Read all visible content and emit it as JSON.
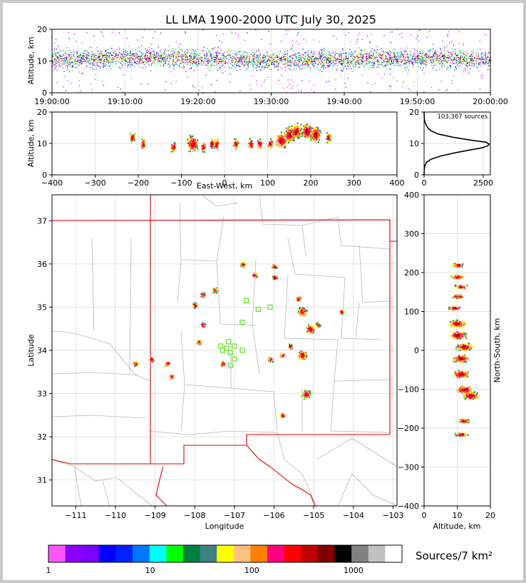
{
  "title": "LL LMA 1900-2000 UTC July 30, 2025",
  "time_height": {
    "ylabel": "Altitude, km",
    "y_ticks": [
      "0",
      "10",
      "20"
    ],
    "x_ticks": [
      "19:00:00",
      "19:10:00",
      "19:20:00",
      "19:30:00",
      "19:40:00",
      "19:50:00",
      "20:00:00"
    ]
  },
  "ew_panel": {
    "ylabel": "Altitude, km",
    "xlabel": "East-West, km",
    "x_ticks": [
      "−400",
      "−300",
      "−200",
      "−100",
      "0",
      "100",
      "200",
      "300",
      "400"
    ],
    "y_ticks": [
      "0",
      "10",
      "20"
    ]
  },
  "hist_panel": {
    "annotation": "103,367 sources",
    "x_ticks": [
      "0",
      "2500"
    ],
    "y_ticks": [
      "0",
      "10",
      "20"
    ]
  },
  "map_panel": {
    "xlabel": "Longitude",
    "ylabel": "Latitude",
    "x_ticks": [
      "−111",
      "−110",
      "−109",
      "−108",
      "−107",
      "−106",
      "−105",
      "−104",
      "−103"
    ],
    "y_ticks": [
      "31",
      "32",
      "33",
      "34",
      "35",
      "36",
      "37"
    ]
  },
  "ns_panel": {
    "xlabel": "Altitude, km",
    "ylabel": "North-South, km",
    "x_ticks": [
      "0",
      "10",
      "20"
    ],
    "y_ticks": [
      "−400",
      "−300",
      "−200",
      "−100",
      "0",
      "100",
      "200",
      "300",
      "400"
    ]
  },
  "colorbar": {
    "label": "Sources/7 km²",
    "ticks": [
      "1",
      "10",
      "100",
      "1000"
    ],
    "colors": [
      "#ff55ff",
      "#8a00ff",
      "#7a00ff",
      "#0000ff",
      "#0022ff",
      "#0077ff",
      "#00ffff",
      "#00ff00",
      "#008040",
      "#408080",
      "#ffff00",
      "#ffc080",
      "#ff8000",
      "#ff0080",
      "#ff0000",
      "#c00000",
      "#800000",
      "#000000",
      "#808080",
      "#c0c0c0",
      "#ffffff"
    ]
  },
  "chart_data": [
    {
      "type": "scatter",
      "title": "LL LMA 1900-2000 UTC July 30, 2025",
      "xlabel": "",
      "ylabel": "Altitude, km",
      "xlim": [
        "19:00:00",
        "20:00:00"
      ],
      "ylim": [
        0,
        20
      ],
      "series": [
        {
          "values": [
            [
              0,
              10.5
            ],
            [
              10,
              11
            ],
            [
              20,
              10.8
            ],
            [
              30,
              10.2
            ],
            [
              40,
              10.6
            ],
            [
              50,
              11
            ],
            [
              60,
              10.5
            ]
          ]
        }
      ],
      "grid": true
    },
    {
      "type": "heatmap",
      "xlabel": "East-West, km",
      "ylabel": "Altitude, km",
      "xlim": [
        -400,
        400
      ],
      "ylim": [
        0,
        20
      ],
      "cells": [
        [
          -215,
          12
        ],
        [
          -190,
          10
        ],
        [
          -120,
          9
        ],
        [
          -75,
          10
        ],
        [
          -50,
          9
        ],
        [
          -30,
          10
        ],
        [
          -20,
          10
        ],
        [
          25,
          10
        ],
        [
          60,
          10
        ],
        [
          80,
          10
        ],
        [
          105,
          10
        ],
        [
          130,
          11
        ],
        [
          150,
          13
        ],
        [
          165,
          14
        ],
        [
          190,
          14
        ],
        [
          210,
          13
        ],
        [
          240,
          12
        ]
      ]
    },
    {
      "type": "line",
      "xlabel": "",
      "ylabel": "",
      "xlim": [
        0,
        2800
      ],
      "ylim": [
        0,
        20
      ],
      "x": [
        0,
        10,
        40,
        100,
        300,
        700,
        1300,
        2000,
        2450,
        2700,
        2750,
        2600,
        2000,
        1200,
        600,
        300,
        150,
        80,
        30,
        10,
        0
      ],
      "y": [
        0,
        2,
        3,
        4,
        5,
        6,
        7,
        8,
        8.6,
        9.3,
        9.8,
        10.4,
        11,
        12,
        13,
        14,
        15,
        16,
        17,
        18,
        20
      ]
    },
    {
      "type": "heatmap",
      "xlabel": "Longitude",
      "ylabel": "Latitude",
      "xlim": [
        -111.6,
        -102.9
      ],
      "ylim": [
        30.4,
        37.6
      ],
      "cells": [
        [
          -105.1,
          34.5
        ],
        [
          -105.3,
          33.9
        ],
        [
          -105.2,
          33.0
        ],
        [
          -105.3,
          34.9
        ],
        [
          -105.6,
          34.1
        ],
        [
          -105.8,
          33.9
        ],
        [
          -106.0,
          35.7
        ],
        [
          -106.0,
          35.95
        ],
        [
          -106.1,
          33.8
        ],
        [
          -105.8,
          32.5
        ],
        [
          -107.8,
          34.6
        ],
        [
          -107.9,
          34.2
        ],
        [
          -107.8,
          35.3
        ],
        [
          -108.0,
          35.05
        ],
        [
          -106.8,
          36.0
        ],
        [
          -104.9,
          34.6
        ],
        [
          -109.5,
          33.7
        ],
        [
          -107.3,
          33.7
        ],
        [
          -104.3,
          34.9
        ],
        [
          -105.4,
          35.2
        ],
        [
          -108.7,
          33.7
        ],
        [
          -108.6,
          33.4
        ],
        [
          -107.5,
          35.4
        ],
        [
          -106.5,
          35.75
        ],
        [
          -109.1,
          33.8
        ]
      ]
    },
    {
      "type": "heatmap",
      "xlabel": "Altitude, km",
      "ylabel": "North-South, km",
      "xlim": [
        0,
        20
      ],
      "ylim": [
        -400,
        400
      ],
      "cells": [
        [
          10,
          220
        ],
        [
          10,
          190
        ],
        [
          11,
          165
        ],
        [
          10,
          140
        ],
        [
          9,
          110
        ],
        [
          10,
          70
        ],
        [
          10,
          40
        ],
        [
          12,
          10
        ],
        [
          11,
          -20
        ],
        [
          11,
          -60
        ],
        [
          12,
          -100
        ],
        [
          14,
          -115
        ],
        [
          12,
          -180
        ],
        [
          11,
          -215
        ]
      ]
    }
  ]
}
